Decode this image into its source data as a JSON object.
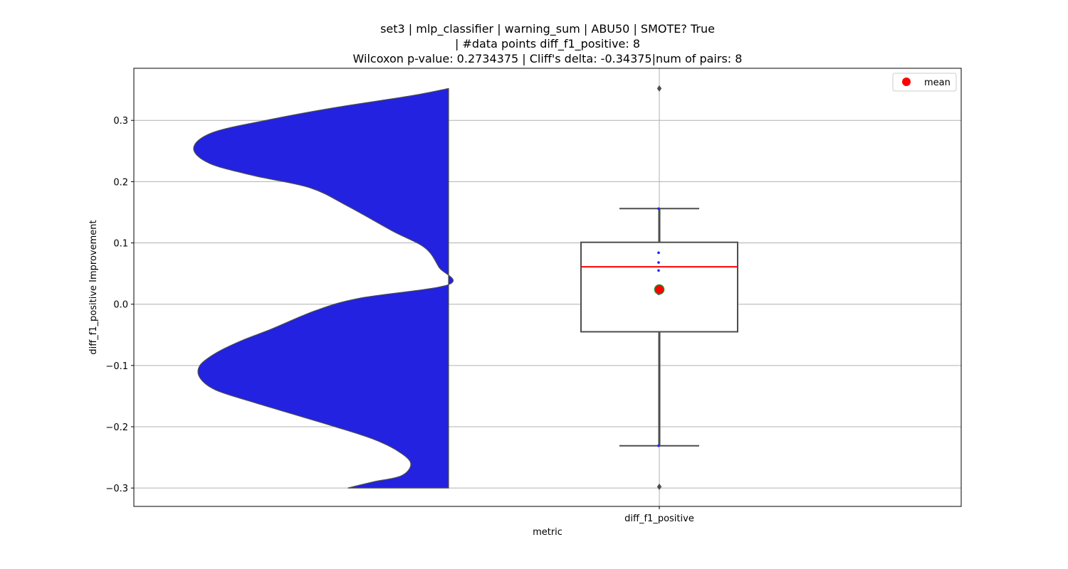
{
  "chart_data": {
    "type": "violin+box",
    "title_lines": [
      "set3 | mlp_classifier | warning_sum | ABU50 | SMOTE? True",
      "| #data points diff_f1_positive: 8",
      "Wilcoxon p-value: 0.2734375 | Cliff's delta: -0.34375|num of pairs: 8"
    ],
    "xlabel": "metric",
    "ylabel": "diff_f1_positive Improvement",
    "categories": [
      "diff_f1_positive"
    ],
    "ylim": [
      -0.33,
      0.385
    ],
    "yticks": [
      -0.3,
      -0.2,
      -0.1,
      0.0,
      0.1,
      0.2,
      0.3
    ],
    "ytick_labels": [
      "−0.3",
      "−0.2",
      "−0.1",
      "0.0",
      "0.1",
      "0.2",
      "0.3"
    ],
    "grid": true,
    "legend": {
      "placement": "top-right",
      "entries": [
        {
          "label": "mean",
          "color": "#ff0000"
        }
      ]
    },
    "violin": {
      "color": "#2222e0",
      "edge_color": "#4d4d4d",
      "side": "left",
      "y_range": [
        -0.3,
        0.352
      ],
      "density_profile": [
        [
          0.352,
          0.0
        ],
        [
          0.34,
          0.12
        ],
        [
          0.32,
          0.37
        ],
        [
          0.3,
          0.58
        ],
        [
          0.28,
          0.75
        ],
        [
          0.255,
          0.81
        ],
        [
          0.23,
          0.76
        ],
        [
          0.21,
          0.62
        ],
        [
          0.19,
          0.44
        ],
        [
          0.16,
          0.32
        ],
        [
          0.12,
          0.18
        ],
        [
          0.092,
          0.075
        ],
        [
          0.06,
          0.03
        ],
        [
          0.032,
          0.0
        ],
        [
          0.01,
          0.28
        ],
        [
          -0.01,
          0.42
        ],
        [
          -0.04,
          0.56
        ],
        [
          -0.06,
          0.66
        ],
        [
          -0.08,
          0.74
        ],
        [
          -0.1,
          0.79
        ],
        [
          -0.12,
          0.79
        ],
        [
          -0.14,
          0.74
        ],
        [
          -0.16,
          0.62
        ],
        [
          -0.18,
          0.49
        ],
        [
          -0.2,
          0.36
        ],
        [
          -0.22,
          0.24
        ],
        [
          -0.24,
          0.16
        ],
        [
          -0.26,
          0.12
        ],
        [
          -0.28,
          0.15
        ],
        [
          -0.29,
          0.24
        ],
        [
          -0.3,
          0.32
        ]
      ]
    },
    "box": {
      "q1": -0.045,
      "median": 0.061,
      "q3": 0.101,
      "whisker_low": -0.231,
      "whisker_high": 0.156,
      "median_color": "#ff0000",
      "edge_color": "#4d4d4d"
    },
    "outliers": [
      0.352,
      -0.298
    ],
    "points": [
      0.084,
      0.068,
      0.055,
      0.017,
      0.156,
      -0.231
    ],
    "points_color": "#2020ff",
    "mean": {
      "value": 0.024,
      "color": "#ff0000",
      "edge_color": "#228b22"
    }
  }
}
